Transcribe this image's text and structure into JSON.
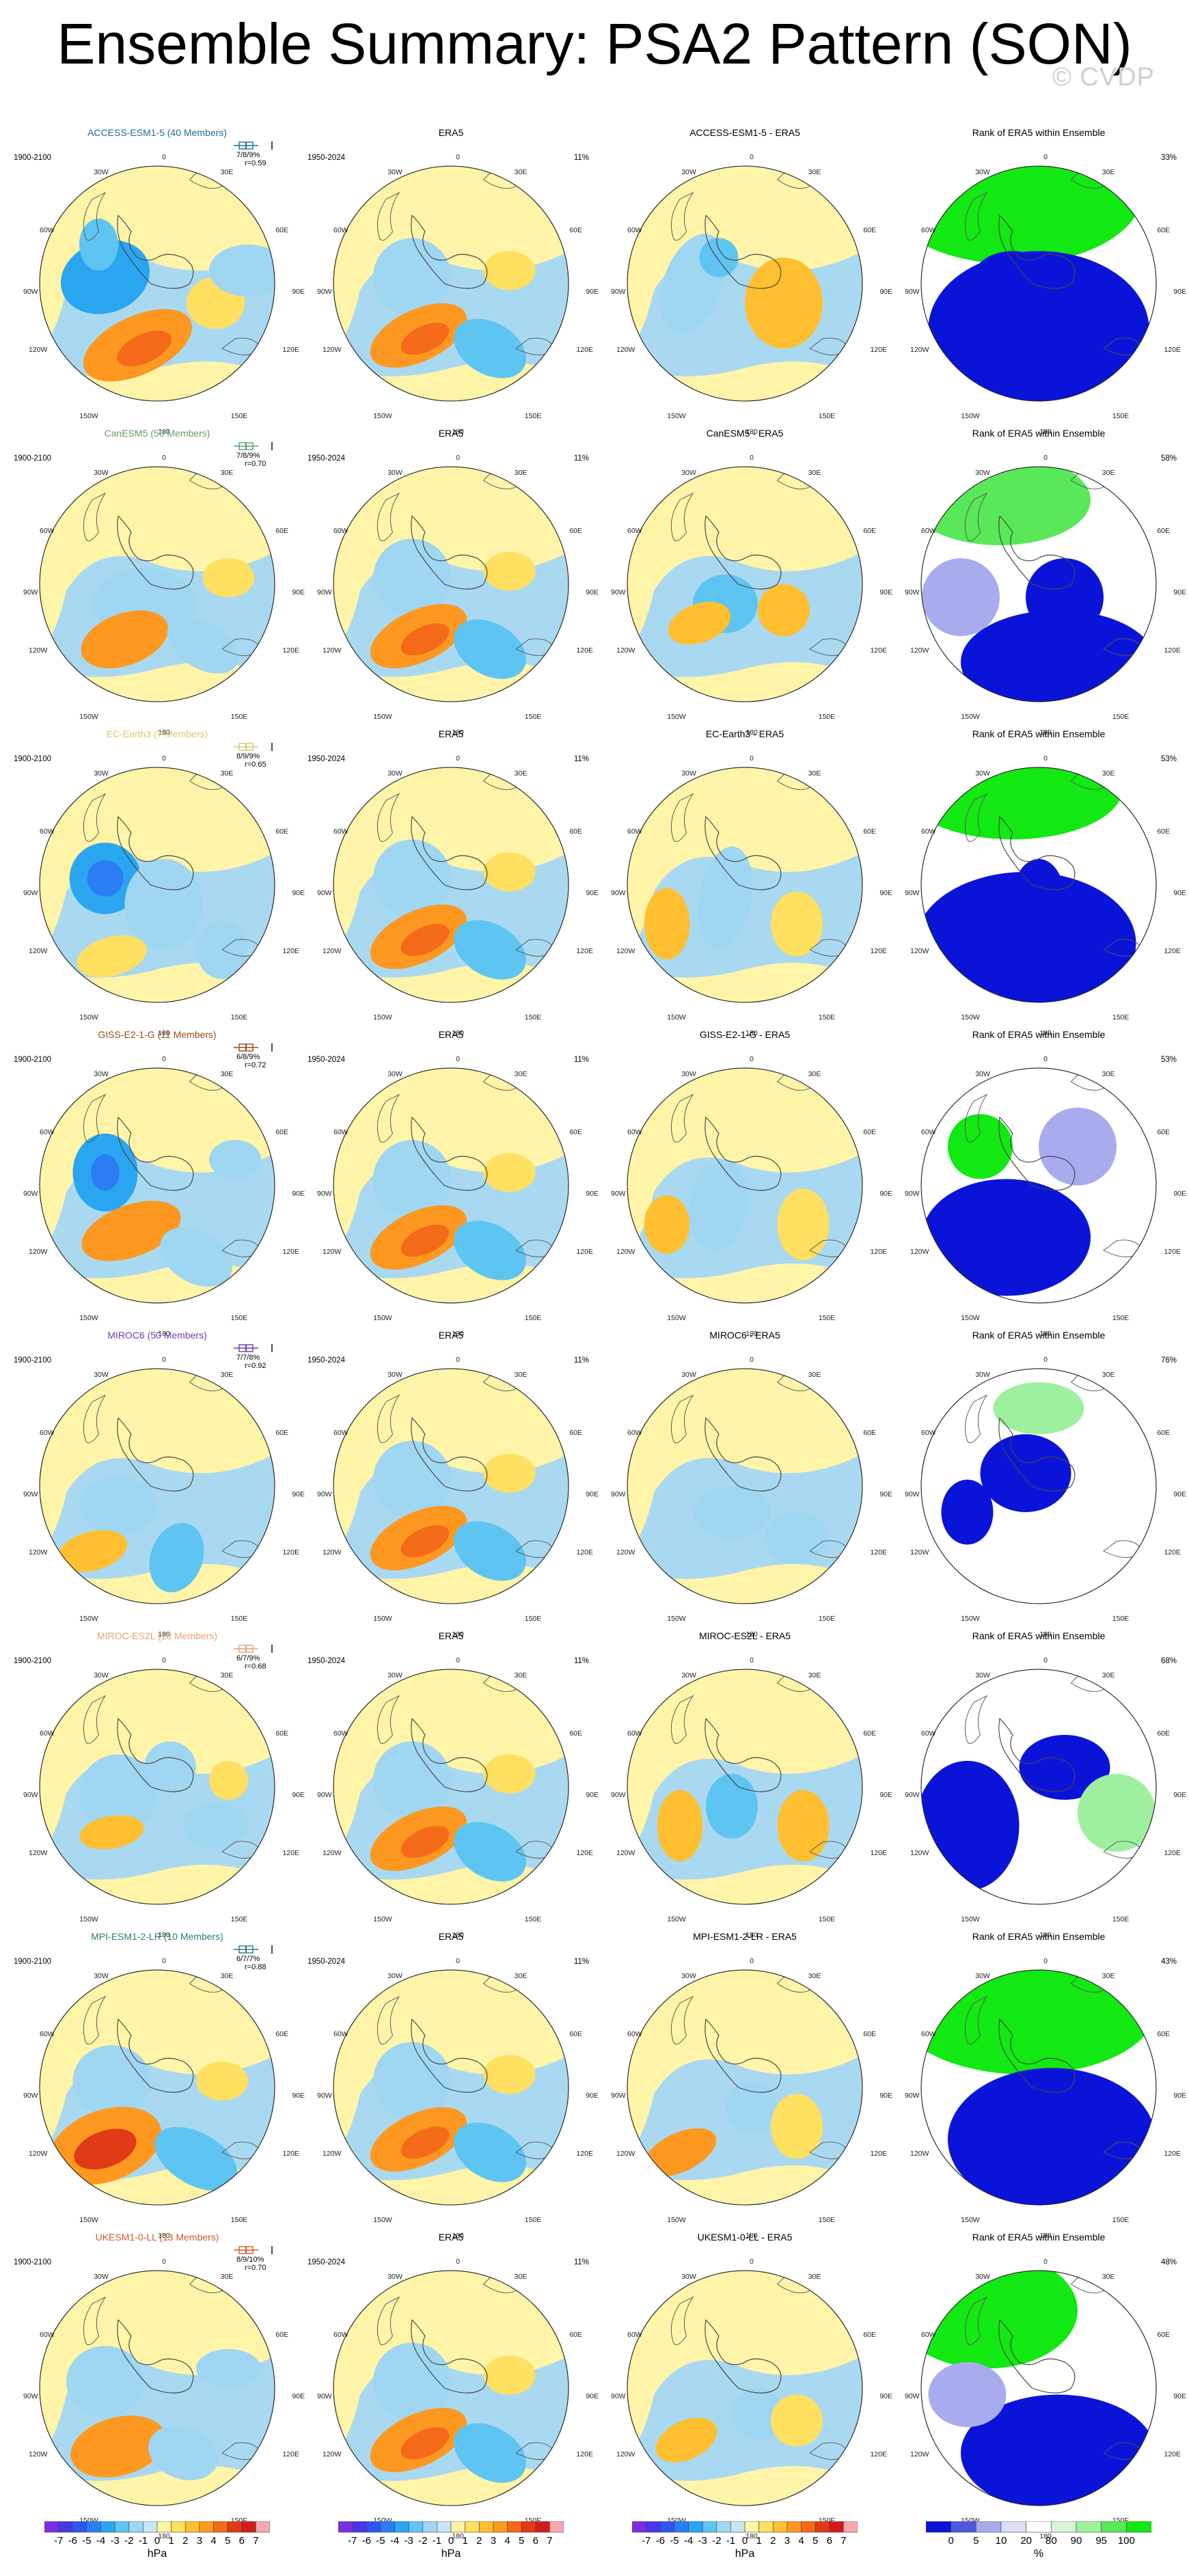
{
  "title": "Ensemble Summary: PSA2 Pattern (SON)",
  "watermark": "© CVDP",
  "lon_labels": {
    "top": "0",
    "bottom": "180",
    "left_top": "30W",
    "right_top": "30E",
    "left_up": "60W",
    "right_up": "60E",
    "left_mid": "90W",
    "right_mid": "90E",
    "left_low": "120W",
    "right_low": "120E",
    "left_bot": "150W",
    "right_bot": "150E"
  },
  "era5": {
    "title": "ERA5",
    "period": "1950-2024",
    "pct": "11%"
  },
  "rank_title": "Rank of ERA5 within Ensemble",
  "rows": [
    {
      "model": "ACCESS-ESM1-5 (40 Members)",
      "color": "#1f6f9a",
      "period": "1900-2100",
      "pct_line": "7/8/9%",
      "r_line": "r=0.59",
      "diff_title": "ACCESS-ESM1-5 - ERA5",
      "rank_pct": "33%"
    },
    {
      "model": "CanESM5 (50 Members)",
      "color": "#5e9e6e",
      "period": "1900-2100",
      "pct_line": "7/8/9%",
      "r_line": "r=0.70",
      "diff_title": "CanESM5 - ERA5",
      "rank_pct": "58%"
    },
    {
      "model": "EC-Earth3 (7 Members)",
      "color": "#d8c870",
      "period": "1900-2100",
      "pct_line": "8/9/9%",
      "r_line": "r=0.65",
      "diff_title": "EC-Earth3 - ERA5",
      "rank_pct": "53%"
    },
    {
      "model": "GISS-E2-1-G (11 Members)",
      "color": "#9a4a1a",
      "period": "1900-2100",
      "pct_line": "6/8/9%",
      "r_line": "r=0.72",
      "diff_title": "GISS-E2-1-G - ERA5",
      "rank_pct": "53%"
    },
    {
      "model": "MIROC6 (50 Members)",
      "color": "#6a3fb0",
      "period": "1900-2100",
      "pct_line": "7/7/8%",
      "r_line": "r=0.92",
      "diff_title": "MIROC6 - ERA5",
      "rank_pct": "76%"
    },
    {
      "model": "MIROC-ES2L (10 Members)",
      "color": "#e8a070",
      "period": "1900-2100",
      "pct_line": "6/7/9%",
      "r_line": "r=0.68",
      "diff_title": "MIROC-ES2L - ERA5",
      "rank_pct": "68%"
    },
    {
      "model": "MPI-ESM1-2-LR (10 Members)",
      "color": "#2a7a7a",
      "period": "1900-2100",
      "pct_line": "6/7/7%",
      "r_line": "r=0.88",
      "diff_title": "MPI-ESM1-2-LR - ERA5",
      "rank_pct": "43%"
    },
    {
      "model": "UKESM1-0-LL (13 Members)",
      "color": "#d05a2a",
      "period": "1900-2100",
      "pct_line": "8/9/10%",
      "r_line": "r=0.70",
      "diff_title": "UKESM1-0-LL - ERA5",
      "rank_pct": "48%"
    }
  ],
  "colorbar_hpa": {
    "units": "hPa",
    "labels": [
      "-7",
      "-6",
      "-5",
      "-4",
      "-3",
      "-2",
      "-1",
      "0",
      "1",
      "2",
      "3",
      "4",
      "5",
      "6",
      "7"
    ],
    "colors": [
      "#7b2ee0",
      "#4a35e8",
      "#2f55f0",
      "#2a7ef2",
      "#2aa6f0",
      "#5ec4f2",
      "#9fd6f2",
      "#c6e6f5",
      "#fff4a8",
      "#ffe060",
      "#ffbf30",
      "#ff9820",
      "#f56a18",
      "#e03a16",
      "#d01c1c",
      "#f6a8b0"
    ]
  },
  "colorbar_rank": {
    "units": "%",
    "labels": [
      "0",
      "5",
      "10",
      "20",
      "80",
      "90",
      "95",
      "100"
    ],
    "colors": [
      "#0a14d8",
      "#5058e0",
      "#a8acef",
      "#dcdef8",
      "#ffffff",
      "#d6f5d6",
      "#9ef09e",
      "#58e858",
      "#12e812"
    ]
  }
}
